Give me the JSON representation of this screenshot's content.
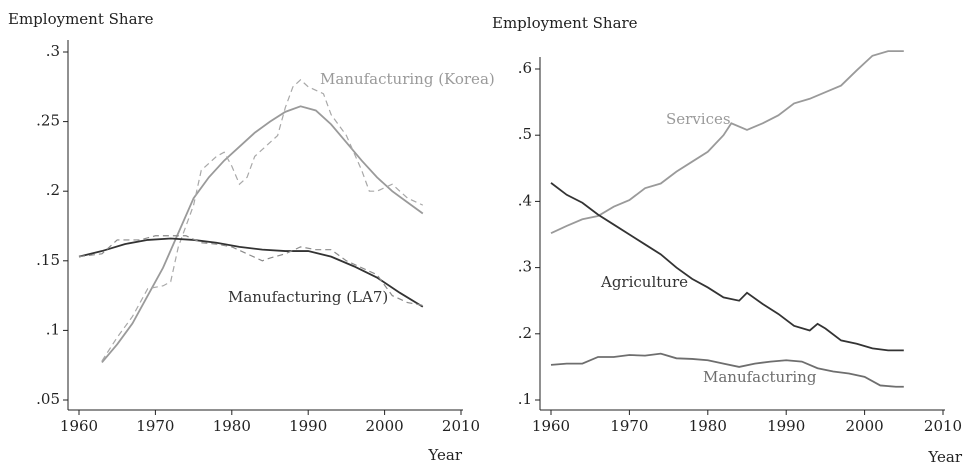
{
  "chart_data": [
    {
      "type": "line",
      "ylabel": "Employment Share",
      "xlabel": "Year",
      "xlim": [
        1960,
        2010
      ],
      "xticks": [
        1960,
        1970,
        1980,
        1990,
        2000,
        2010
      ],
      "ylim": [
        0.05,
        0.3
      ],
      "yticks": [
        {
          "value": 0.05,
          "label": ".05"
        },
        {
          "value": 0.1,
          "label": ".1"
        },
        {
          "value": 0.15,
          "label": ".15"
        },
        {
          "value": 0.2,
          "label": ".2"
        },
        {
          "value": 0.25,
          "label": ".25"
        },
        {
          "value": 0.3,
          "label": ".3"
        }
      ],
      "series": [
        {
          "name": "Manufacturing (Korea)",
          "color": "#9a9a9a",
          "x": [
            1963,
            1965,
            1967,
            1969,
            1971,
            1973,
            1975,
            1977,
            1979,
            1981,
            1983,
            1985,
            1987,
            1989,
            1991,
            1993,
            1995,
            1997,
            1999,
            2001,
            2003,
            2005
          ],
          "values": [
            0.077,
            0.09,
            0.105,
            0.125,
            0.145,
            0.17,
            0.195,
            0.21,
            0.222,
            0.232,
            0.242,
            0.25,
            0.257,
            0.261,
            0.258,
            0.248,
            0.235,
            0.222,
            0.21,
            0.2,
            0.192,
            0.184
          ]
        },
        {
          "color": "#a8a8a8",
          "dashed": true,
          "x": [
            1963,
            1965,
            1967,
            1969,
            1971,
            1972,
            1973,
            1975,
            1976,
            1978,
            1979,
            1980,
            1981,
            1982,
            1983,
            1985,
            1986,
            1987,
            1988,
            1989,
            1990,
            1992,
            1993,
            1995,
            1997,
            1998,
            1999,
            2001,
            2003,
            2005
          ],
          "values": [
            0.078,
            0.095,
            0.11,
            0.13,
            0.132,
            0.135,
            0.16,
            0.19,
            0.215,
            0.225,
            0.228,
            0.218,
            0.205,
            0.21,
            0.225,
            0.235,
            0.24,
            0.26,
            0.275,
            0.28,
            0.275,
            0.27,
            0.255,
            0.24,
            0.215,
            0.2,
            0.2,
            0.205,
            0.195,
            0.19
          ]
        },
        {
          "name": "Manufacturing (LA7)",
          "color": "#333333",
          "x": [
            1960,
            1963,
            1966,
            1969,
            1972,
            1975,
            1978,
            1981,
            1984,
            1987,
            1990,
            1993,
            1996,
            1999,
            2002,
            2005
          ],
          "values": [
            0.153,
            0.157,
            0.162,
            0.165,
            0.166,
            0.165,
            0.163,
            0.16,
            0.158,
            0.157,
            0.157,
            0.153,
            0.146,
            0.138,
            0.127,
            0.117
          ]
        },
        {
          "color": "#8a8a8a",
          "dashed": true,
          "x": [
            1960,
            1963,
            1965,
            1968,
            1970,
            1972,
            1974,
            1976,
            1978,
            1980,
            1982,
            1984,
            1985,
            1987,
            1989,
            1991,
            1993,
            1995,
            1997,
            1999,
            2001,
            2003,
            2005
          ],
          "values": [
            0.153,
            0.155,
            0.165,
            0.165,
            0.168,
            0.168,
            0.168,
            0.163,
            0.162,
            0.16,
            0.155,
            0.15,
            0.152,
            0.155,
            0.16,
            0.158,
            0.158,
            0.15,
            0.145,
            0.14,
            0.125,
            0.12,
            0.118
          ]
        }
      ]
    },
    {
      "type": "line",
      "ylabel": "Employment Share",
      "xlabel": "Year",
      "xlim": [
        1960,
        2010
      ],
      "xticks": [
        1960,
        1970,
        1980,
        1990,
        2000,
        2010
      ],
      "ylim": [
        0.1,
        0.6
      ],
      "yticks": [
        {
          "value": 0.1,
          "label": ".1"
        },
        {
          "value": 0.2,
          "label": ".2"
        },
        {
          "value": 0.3,
          "label": ".3"
        },
        {
          "value": 0.4,
          "label": ".4"
        },
        {
          "value": 0.5,
          "label": ".5"
        },
        {
          "value": 0.6,
          "label": ".6"
        }
      ],
      "series": [
        {
          "name": "Services",
          "color": "#9a9a9a",
          "x": [
            1960,
            1962,
            1964,
            1966,
            1968,
            1970,
            1972,
            1974,
            1976,
            1978,
            1980,
            1982,
            1983,
            1985,
            1987,
            1989,
            1991,
            1993,
            1995,
            1997,
            1999,
            2001,
            2003,
            2005
          ],
          "values": [
            0.352,
            0.363,
            0.373,
            0.378,
            0.392,
            0.402,
            0.42,
            0.427,
            0.445,
            0.46,
            0.475,
            0.5,
            0.518,
            0.508,
            0.518,
            0.53,
            0.548,
            0.555,
            0.565,
            0.575,
            0.598,
            0.62,
            0.627,
            0.627
          ]
        },
        {
          "name": "Agriculture",
          "color": "#333333",
          "x": [
            1960,
            1962,
            1964,
            1966,
            1968,
            1970,
            1972,
            1974,
            1976,
            1978,
            1980,
            1982,
            1984,
            1985,
            1987,
            1989,
            1991,
            1993,
            1994,
            1995,
            1997,
            1999,
            2001,
            2003,
            2005
          ],
          "values": [
            0.428,
            0.41,
            0.398,
            0.38,
            0.365,
            0.35,
            0.335,
            0.32,
            0.3,
            0.283,
            0.27,
            0.255,
            0.25,
            0.262,
            0.245,
            0.23,
            0.212,
            0.205,
            0.215,
            0.208,
            0.19,
            0.185,
            0.178,
            0.175,
            0.175
          ]
        },
        {
          "name": "Manufacturing",
          "color": "#6e6e6e",
          "x": [
            1960,
            1962,
            1964,
            1966,
            1968,
            1970,
            1972,
            1974,
            1976,
            1978,
            1980,
            1982,
            1984,
            1986,
            1988,
            1990,
            1992,
            1994,
            1996,
            1998,
            2000,
            2002,
            2004,
            2005
          ],
          "values": [
            0.153,
            0.155,
            0.155,
            0.165,
            0.165,
            0.168,
            0.167,
            0.17,
            0.163,
            0.162,
            0.16,
            0.155,
            0.15,
            0.155,
            0.158,
            0.16,
            0.158,
            0.148,
            0.143,
            0.14,
            0.135,
            0.122,
            0.12,
            0.12
          ]
        }
      ]
    }
  ]
}
